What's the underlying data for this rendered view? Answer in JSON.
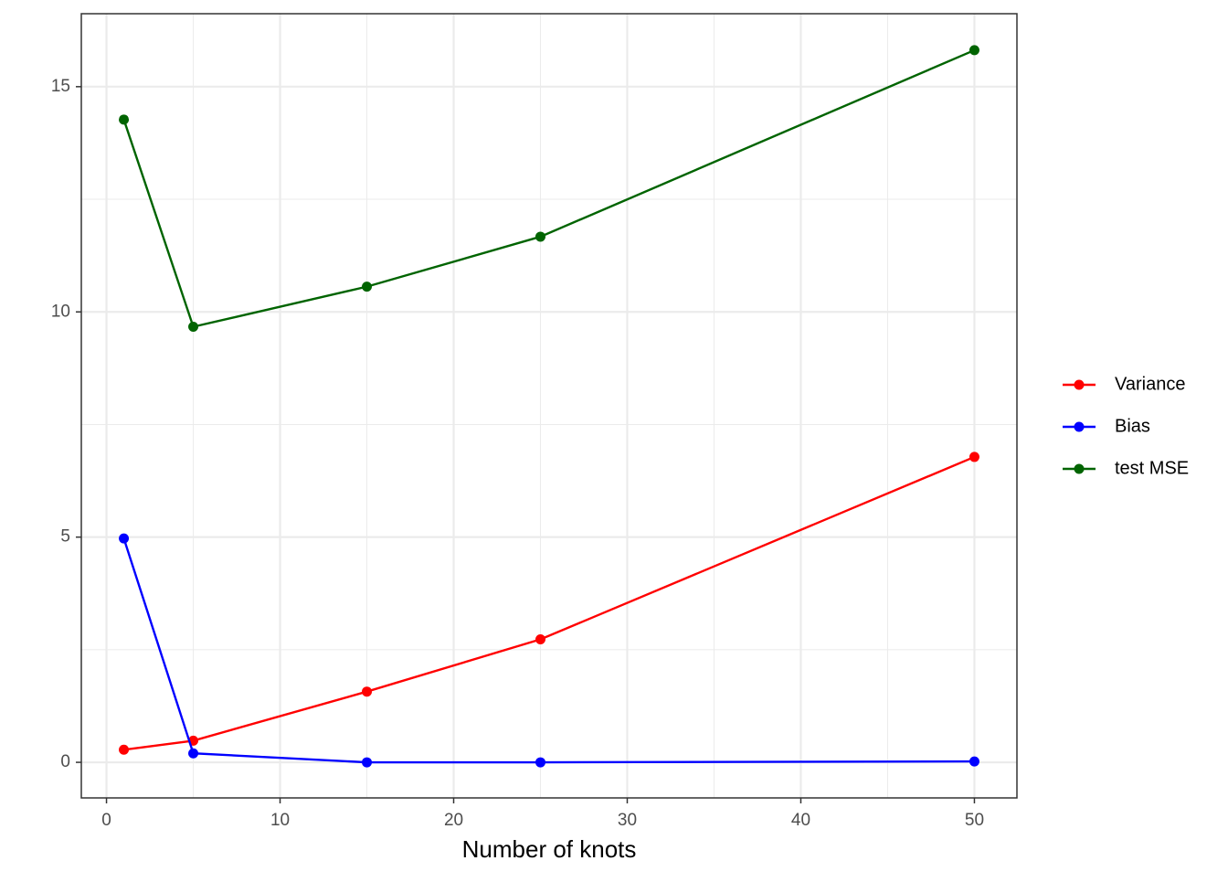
{
  "chart_data": {
    "type": "line",
    "x_label": "Number of knots",
    "x": [
      1,
      5,
      15,
      25,
      50
    ],
    "series": [
      {
        "name": "Variance",
        "color": "#ff0000",
        "values": [
          0.28,
          0.48,
          1.57,
          2.73,
          6.78
        ]
      },
      {
        "name": "Bias",
        "color": "#0000ff",
        "values": [
          4.97,
          0.2,
          0.0,
          0.0,
          0.02
        ]
      },
      {
        "name": "test MSE",
        "color": "#006400",
        "values": [
          14.27,
          9.67,
          10.56,
          11.67,
          15.81
        ]
      }
    ],
    "xlim": [
      -1.45,
      52.45
    ],
    "ylim": [
      -0.79,
      16.62
    ],
    "xticks": [
      0,
      10,
      20,
      30,
      40,
      50
    ],
    "yticks": [
      0,
      5,
      10,
      15
    ],
    "x_minor_grid": [
      5,
      15,
      25,
      35,
      45
    ],
    "y_minor_grid": [
      2.5,
      7.5,
      12.5
    ],
    "grid": true,
    "legend": "right"
  }
}
